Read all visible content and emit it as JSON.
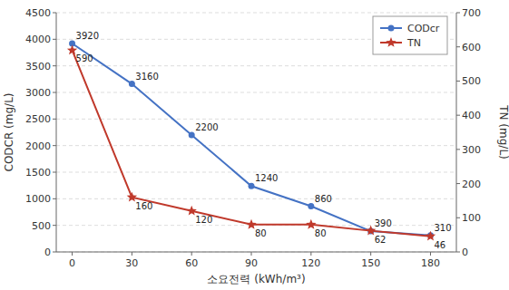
{
  "chart_data": {
    "type": "line",
    "x": [
      0,
      30,
      60,
      90,
      120,
      150,
      180
    ],
    "xlabel": "소요전력 (kWh/m³)",
    "ylabel": "CODCR (mg/L)",
    "y2label": "TN (mg/L)",
    "xlim": [
      -8,
      193
    ],
    "xticks": [
      0,
      30,
      60,
      90,
      120,
      150,
      180
    ],
    "ylim": [
      0,
      4500
    ],
    "yticks": [
      0,
      500,
      1000,
      1500,
      2000,
      2500,
      3000,
      3500,
      4000,
      4500
    ],
    "y2lim": [
      0,
      700
    ],
    "y2ticks": [
      0,
      100,
      200,
      300,
      400,
      500,
      600,
      700
    ],
    "grid": true,
    "legend": "upper right",
    "data_labels": true,
    "series": [
      {
        "name": "CODcr",
        "color": "#4472C4",
        "marker": "circle",
        "values": [
          3920,
          3160,
          2200,
          1240,
          860,
          390,
          310
        ]
      },
      {
        "name": "TN",
        "color": "#C0392B",
        "marker": "star",
        "axis": "y2",
        "values": [
          590,
          160,
          120,
          80,
          80,
          62,
          46
        ]
      }
    ]
  }
}
